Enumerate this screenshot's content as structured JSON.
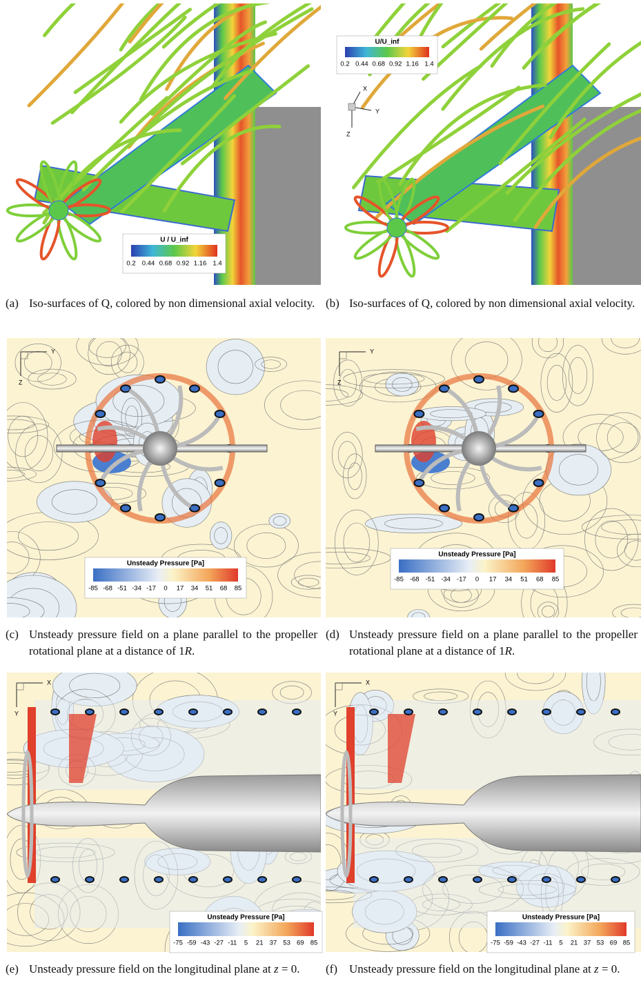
{
  "panels": [
    {
      "label": "(a)",
      "caption": [
        {
          "text": "Iso-surfaces of Q, colored by non dimensional axial velocity.",
          "italic": false
        }
      ],
      "colorbar": {
        "title": "U / U_inf",
        "ticks": [
          0.2,
          0.44,
          0.68,
          0.92,
          1.16,
          1.4
        ]
      },
      "triad": []
    },
    {
      "label": "(b)",
      "caption": [
        {
          "text": "Iso-surfaces of Q, colored by non dimensional axial velocity.",
          "italic": false
        }
      ],
      "colorbar": {
        "title": "U/U_inf",
        "ticks": [
          0.2,
          0.44,
          0.68,
          0.92,
          1.16,
          1.4
        ]
      },
      "triad": [
        "X",
        "Y",
        "Z"
      ]
    },
    {
      "label": "(c)",
      "caption": [
        {
          "text": "Unsteady pressure field on a plane parallel to the propeller rotational plane at a distance of 1",
          "italic": false
        },
        {
          "text": "R",
          "italic": true
        },
        {
          "text": ".",
          "italic": false
        }
      ],
      "colorbar": {
        "title": "Unsteady Pressure [Pa]",
        "ticks": [
          -85,
          -68,
          -51,
          -34,
          -17,
          0,
          17,
          34,
          51,
          68,
          85
        ]
      },
      "triad": [
        "Y",
        "Z"
      ]
    },
    {
      "label": "(d)",
      "caption": [
        {
          "text": "Unsteady pressure field on a plane parallel to the propeller rotational plane at a distance of 1",
          "italic": false
        },
        {
          "text": "R",
          "italic": true
        },
        {
          "text": ".",
          "italic": false
        }
      ],
      "colorbar": {
        "title": "Unsteady Pressure [Pa]",
        "ticks": [
          -85,
          -68,
          -51,
          -34,
          -17,
          0,
          17,
          34,
          51,
          68,
          85
        ]
      },
      "triad": [
        "Y",
        "Z"
      ]
    },
    {
      "label": "(e)",
      "caption": [
        {
          "text": "Unsteady pressure field on the longitudinal plane at ",
          "italic": false
        },
        {
          "text": "z",
          "italic": true
        },
        {
          "text": " = 0.",
          "italic": false
        }
      ],
      "colorbar": {
        "title": "Unsteady Pressure [Pa]",
        "ticks": [
          -75,
          -59,
          -43,
          -27,
          -11,
          5,
          21,
          37,
          53,
          69,
          85
        ]
      },
      "triad": [
        "X",
        "Y"
      ]
    },
    {
      "label": "(f)",
      "caption": [
        {
          "text": "Unsteady pressure field on the longitudinal plane at ",
          "italic": false
        },
        {
          "text": "z",
          "italic": true
        },
        {
          "text": " = 0.",
          "italic": false
        }
      ],
      "colorbar": {
        "title": "Unsteady Pressure [Pa]",
        "ticks": [
          -75,
          -59,
          -43,
          -27,
          -11,
          5,
          21,
          37,
          53,
          69,
          85
        ]
      },
      "triad": [
        "X",
        "Y"
      ]
    }
  ]
}
